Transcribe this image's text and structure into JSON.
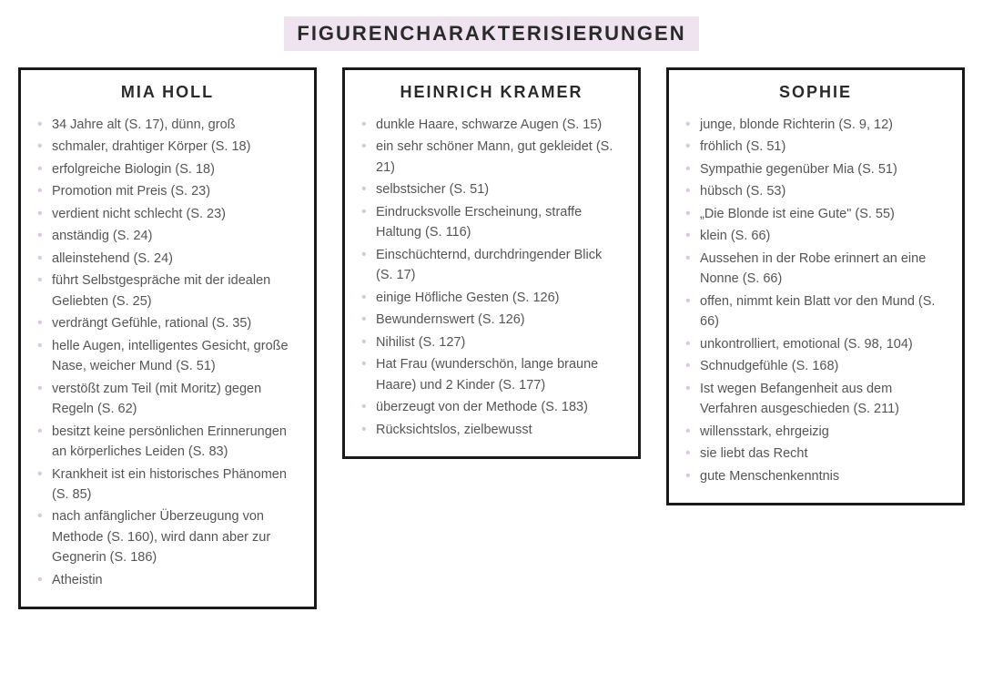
{
  "title": "FIGURENCHARAKTERISIERUNGEN",
  "colors": {
    "title_bg": "#efe3f0",
    "border": "#1a1a1a",
    "bullet": "#d9c8de",
    "text": "#555555"
  },
  "columns": [
    {
      "heading": "MIA HOLL",
      "items": [
        "34 Jahre alt (S. 17), dünn, groß",
        "schmaler, drahtiger Körper (S. 18)",
        "erfolgreiche Biologin (S. 18)",
        "Promotion mit Preis (S. 23)",
        "verdient nicht schlecht (S. 23)",
        "anständig (S. 24)",
        "alleinstehend (S. 24)",
        "führt Selbstgespräche mit der idealen Geliebten (S. 25)",
        "verdrängt Gefühle, rational (S. 35)",
        "helle Augen, intelligentes Gesicht, große Nase, weicher Mund (S. 51)",
        "verstößt zum Teil (mit Moritz) gegen Regeln (S. 62)",
        "besitzt keine persönlichen Erinnerungen an körperliches Leiden (S. 83)",
        "Krankheit ist ein historisches Phänomen (S. 85)",
        "nach anfänglicher Überzeugung von Methode (S. 160), wird dann aber zur Gegnerin (S. 186)",
        "Atheistin"
      ]
    },
    {
      "heading": "HEINRICH KRAMER",
      "items": [
        "dunkle Haare, schwarze Augen (S. 15)",
        "ein sehr schöner Mann, gut gekleidet (S. 21)",
        "selbstsicher (S. 51)",
        "Eindrucksvolle Erscheinung, straffe Haltung (S. 116)",
        "Einschüchternd, durchdringender Blick (S. 17)",
        "einige Höfliche Gesten (S. 126)",
        "Bewundernswert (S. 126)",
        "Nihilist (S. 127)",
        "Hat Frau (wunderschön, lange braune Haare) und 2 Kinder (S. 177)",
        "überzeugt von der Methode (S. 183)",
        "Rücksichtslos, zielbewusst"
      ]
    },
    {
      "heading": "SOPHIE",
      "items": [
        "junge, blonde Richterin (S. 9, 12)",
        "fröhlich (S. 51)",
        "Sympathie gegenüber Mia (S. 51)",
        "hübsch (S. 53)",
        "„Die Blonde ist eine Gute\" (S. 55)",
        "klein (S. 66)",
        "Aussehen in der Robe erinnert an eine Nonne (S. 66)",
        "offen, nimmt kein Blatt vor den Mund (S. 66)",
        "unkontrolliert, emotional (S. 98, 104)",
        "Schnudgefühle (S. 168)",
        "Ist wegen Befangenheit aus dem Verfahren ausgeschieden (S. 211)",
        "willensstark, ehrgeizig",
        "sie liebt das Recht",
        "gute Menschenkenntnis"
      ]
    }
  ]
}
